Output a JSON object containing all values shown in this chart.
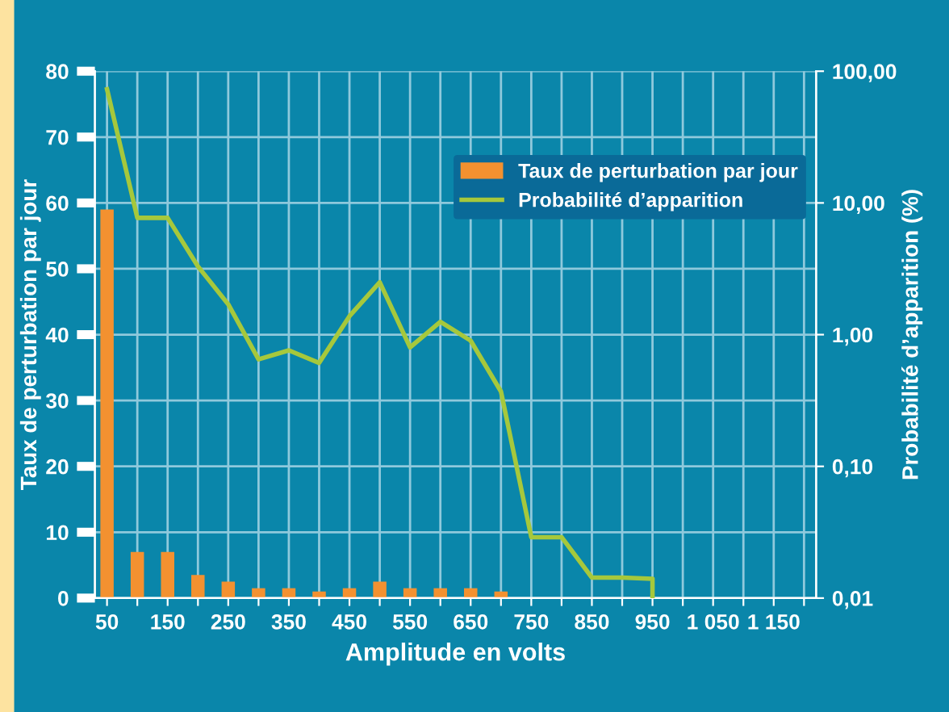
{
  "chart_data": {
    "type": "bar",
    "xlabel": "Amplitude en volts",
    "ylabel": "Taux de perturbation par jour",
    "y2label": "Probabilité d’apparition (%)",
    "x": [
      50,
      100,
      150,
      200,
      250,
      300,
      350,
      400,
      450,
      500,
      550,
      600,
      650,
      700
    ],
    "series": [
      {
        "name": "Taux de perturbation par jour",
        "color": "#f39130",
        "values": [
          59,
          7,
          7,
          3.5,
          2.5,
          1.5,
          1.5,
          1,
          1.5,
          2.5,
          1.5,
          1.5,
          1.5,
          1
        ]
      },
      {
        "name": "Probabilité d’apparition",
        "type": "line",
        "axis": "y2",
        "color": "#a6c83c",
        "x": [
          50,
          100,
          150,
          200,
          250,
          300,
          350,
          400,
          450,
          500,
          550,
          600,
          650,
          700,
          750,
          800,
          850,
          900,
          950,
          950
        ],
        "values": [
          73,
          7.7,
          7.7,
          3.3,
          1.7,
          0.65,
          0.76,
          0.61,
          1.38,
          2.5,
          0.8,
          1.25,
          0.9,
          0.37,
          0.029,
          0.029,
          0.0143,
          0.0143,
          0.014,
          0.01
        ]
      }
    ],
    "xlim": [
      30,
      1220
    ],
    "xticks": [
      50,
      {
        "value": 100,
        "label": null
      },
      150,
      {
        "value": 200,
        "label": null
      },
      250,
      {
        "value": 300,
        "label": null
      },
      350,
      {
        "value": 400,
        "label": null
      },
      450,
      {
        "value": 500,
        "label": null
      },
      550,
      {
        "value": 600,
        "label": null
      },
      650,
      {
        "value": 700,
        "label": null
      },
      750,
      {
        "value": 800,
        "label": null
      },
      850,
      {
        "value": 900,
        "label": null
      },
      950,
      {
        "value": 1000,
        "label": null
      },
      {
        "value": 1050,
        "label": "1 050"
      },
      {
        "value": 1100,
        "label": null
      },
      {
        "value": 1150,
        "label": "1 150"
      },
      {
        "value": 1200,
        "label": null
      }
    ],
    "ylim": [
      0,
      80
    ],
    "yticks": [
      0,
      10,
      20,
      30,
      40,
      50,
      60,
      70,
      80
    ],
    "log": "y2",
    "y2lim": [
      0.01,
      100
    ],
    "y2ticks": [
      {
        "value": 0.01,
        "label": "0,01"
      },
      {
        "value": 0.1,
        "label": "0,10"
      },
      {
        "value": 1,
        "label": "1,00"
      },
      {
        "value": 10,
        "label": "10,00"
      },
      {
        "value": 100,
        "label": "100,00"
      }
    ],
    "grid": true,
    "legend": "top right"
  }
}
